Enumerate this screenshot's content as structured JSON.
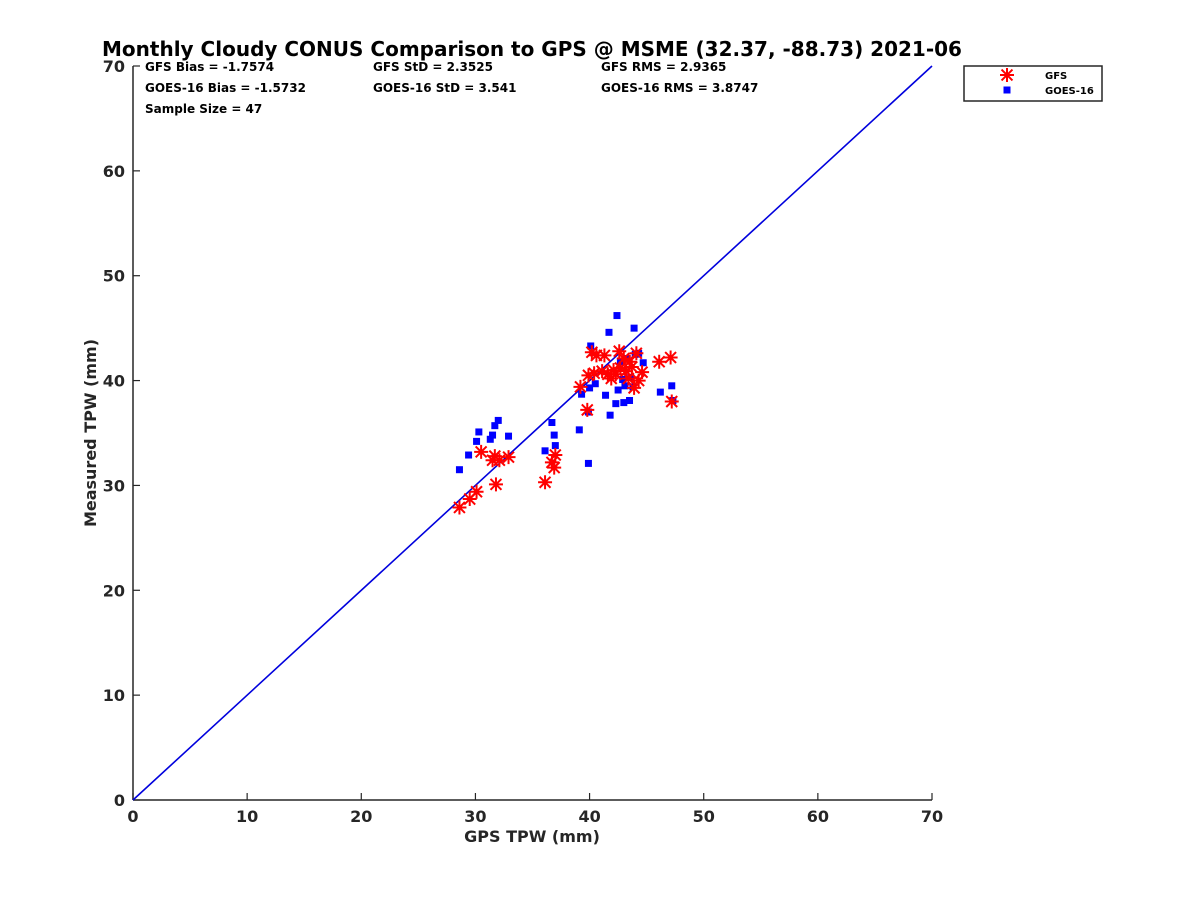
{
  "chart_data": {
    "type": "scatter",
    "title": "Monthly Cloudy CONUS Comparison to GPS @ MSME (32.37, -88.73) 2021-06",
    "xlabel": "GPS TPW (mm)",
    "ylabel": "Measured TPW (mm)",
    "xlim": [
      0,
      70
    ],
    "ylim": [
      0,
      70
    ],
    "xticks": [
      0,
      10,
      20,
      30,
      40,
      50,
      60,
      70
    ],
    "yticks": [
      0,
      10,
      20,
      30,
      40,
      50,
      60,
      70
    ],
    "grid": false,
    "legend_position": "outside top-right",
    "stats": {
      "gfs_bias": "GFS Bias = -1.7574",
      "gfs_std": "GFS StD = 2.3525",
      "gfs_rms": "GFS RMS = 2.9365",
      "goes_bias": "GOES-16 Bias = -1.5732",
      "goes_std": "GOES-16 StD = 3.541",
      "goes_rms": "GOES-16 RMS = 3.8747",
      "sample_size": "Sample Size = 47"
    },
    "reference_line": {
      "name": "1:1",
      "x": [
        0,
        70
      ],
      "y": [
        0,
        70
      ],
      "color": "#0000dd"
    },
    "series": [
      {
        "name": "GFS",
        "marker": "asterisk",
        "color": "#ff0000",
        "points": [
          [
            28.6,
            27.9
          ],
          [
            29.5,
            28.7
          ],
          [
            30.1,
            29.4
          ],
          [
            30.5,
            33.2
          ],
          [
            31.5,
            32.4
          ],
          [
            31.7,
            32.8
          ],
          [
            31.8,
            30.1
          ],
          [
            32.1,
            32.4
          ],
          [
            32.9,
            32.7
          ],
          [
            36.1,
            30.3
          ],
          [
            36.7,
            32.2
          ],
          [
            36.9,
            31.7
          ],
          [
            37.0,
            32.9
          ],
          [
            39.2,
            39.4
          ],
          [
            39.8,
            37.2
          ],
          [
            39.9,
            40.5
          ],
          [
            40.2,
            42.7
          ],
          [
            40.4,
            40.7
          ],
          [
            40.6,
            42.4
          ],
          [
            41.1,
            40.9
          ],
          [
            41.3,
            42.4
          ],
          [
            41.6,
            40.6
          ],
          [
            41.9,
            40.2
          ],
          [
            42.1,
            41.0
          ],
          [
            42.3,
            40.6
          ],
          [
            42.6,
            42.8
          ],
          [
            42.7,
            41.2
          ],
          [
            43.0,
            42.1
          ],
          [
            43.2,
            40.9
          ],
          [
            43.4,
            40.2
          ],
          [
            43.5,
            41.8
          ],
          [
            43.7,
            41.3
          ],
          [
            43.9,
            39.3
          ],
          [
            44.1,
            42.6
          ],
          [
            44.3,
            40.0
          ],
          [
            44.6,
            40.8
          ],
          [
            46.1,
            41.8
          ],
          [
            47.1,
            42.2
          ],
          [
            47.2,
            38.0
          ]
        ]
      },
      {
        "name": "GOES-16",
        "marker": "square",
        "color": "#0000ff",
        "points": [
          [
            28.6,
            31.5
          ],
          [
            29.4,
            32.9
          ],
          [
            30.1,
            34.2
          ],
          [
            30.3,
            35.1
          ],
          [
            31.3,
            34.4
          ],
          [
            31.5,
            34.8
          ],
          [
            31.7,
            35.7
          ],
          [
            32.0,
            36.2
          ],
          [
            32.9,
            34.7
          ],
          [
            36.1,
            33.3
          ],
          [
            36.7,
            36.0
          ],
          [
            36.9,
            34.8
          ],
          [
            37.0,
            33.8
          ],
          [
            39.1,
            35.3
          ],
          [
            39.3,
            38.7
          ],
          [
            39.9,
            32.1
          ],
          [
            39.9,
            37.0
          ],
          [
            40.0,
            39.3
          ],
          [
            40.1,
            43.3
          ],
          [
            40.5,
            39.7
          ],
          [
            41.4,
            38.6
          ],
          [
            41.7,
            44.6
          ],
          [
            41.8,
            36.7
          ],
          [
            42.3,
            37.8
          ],
          [
            42.4,
            46.2
          ],
          [
            42.5,
            39.1
          ],
          [
            42.7,
            41.8
          ],
          [
            42.9,
            40.1
          ],
          [
            43.0,
            37.9
          ],
          [
            43.1,
            39.5
          ],
          [
            43.3,
            42.1
          ],
          [
            43.5,
            38.1
          ],
          [
            43.6,
            40.3
          ],
          [
            43.8,
            39.4
          ],
          [
            43.9,
            45.0
          ],
          [
            44.0,
            42.5
          ],
          [
            44.3,
            42.6
          ],
          [
            44.7,
            41.7
          ],
          [
            46.2,
            38.9
          ],
          [
            47.2,
            39.5
          ],
          [
            47.3,
            38.1
          ]
        ]
      }
    ]
  }
}
